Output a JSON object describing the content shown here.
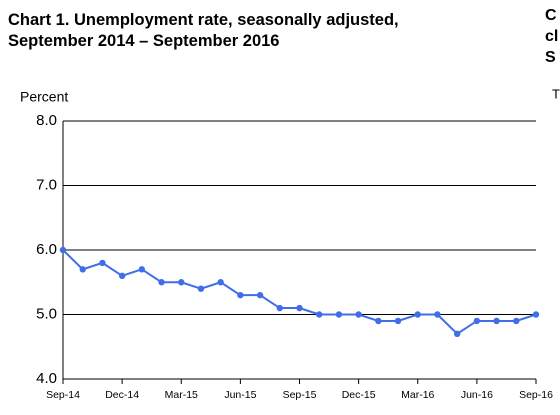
{
  "chart_data": {
    "type": "line",
    "title": "Chart 1. Unemployment rate, seasonally adjusted, September 2014 – September 2016",
    "y_label": "Percent",
    "categories": [
      "Sep-14",
      null,
      null,
      "Dec-14",
      null,
      null,
      "Mar-15",
      null,
      null,
      "Jun-15",
      null,
      null,
      "Sep-15",
      null,
      null,
      "Dec-15",
      null,
      null,
      "Mar-16",
      null,
      null,
      "Jun-16",
      null,
      null,
      "Sep-16"
    ],
    "series": [
      {
        "name": "Unemployment rate",
        "color": "#3f6ee6",
        "values": [
          6.0,
          5.7,
          5.8,
          5.6,
          5.7,
          5.5,
          5.5,
          5.4,
          5.5,
          5.3,
          5.3,
          5.1,
          5.1,
          5.0,
          5.0,
          5.0,
          4.9,
          4.9,
          5.0,
          5.0,
          4.7,
          4.9,
          4.9,
          4.9,
          5.0
        ]
      }
    ],
    "ylim": [
      4,
      8
    ],
    "yticks": [
      {
        "value": 4,
        "label": "4.0"
      },
      {
        "value": 5,
        "label": "5.0"
      },
      {
        "value": 6,
        "label": "6.0"
      },
      {
        "value": 7,
        "label": "7.0"
      },
      {
        "value": 8,
        "label": "8.0"
      }
    ],
    "grid": true,
    "side_text": [
      "C",
      "cl",
      "S",
      "T"
    ]
  }
}
